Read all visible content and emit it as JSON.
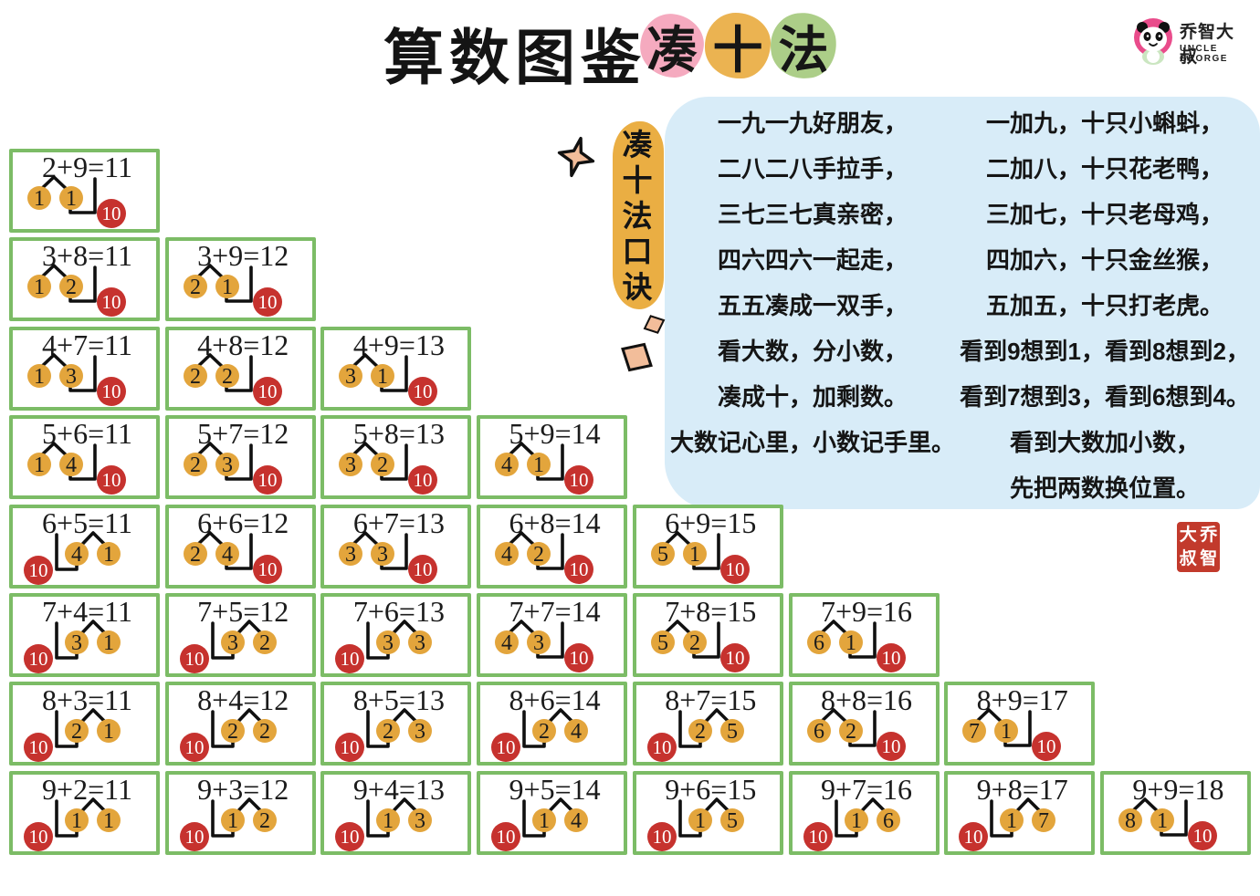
{
  "title": {
    "main": "算数图鉴",
    "method_chars": [
      {
        "char": "凑",
        "bg": "#F5AABF"
      },
      {
        "char": "十",
        "bg": "#EBB351"
      },
      {
        "char": "法",
        "bg": "#ACCE88"
      }
    ]
  },
  "logo": {
    "name_cn": "乔智大叔",
    "name_en": "UNCLE GEORGE",
    "pink": "#E94C8B"
  },
  "vertical_slogan": {
    "text": "凑十法口诀",
    "chars": [
      "凑",
      "十",
      "法",
      "口",
      "诀"
    ]
  },
  "rhyme_left": [
    "一九一九好朋友，",
    "二八二八手拉手，",
    "三七三七真亲密，",
    "四六四六一起走，",
    "五五凑成一双手，",
    "看大数，分小数，",
    "凑成十，加剩数。",
    "大数记心里，小数记手里。"
  ],
  "rhyme_right": [
    "一加九，十只小蝌蚪，",
    "二加八，十只花老鸭，",
    "三加七，十只老母鸡，",
    "四加六，十只金丝猴，",
    "五加五，十只打老虎。",
    "看到9想到1，看到8想到2，",
    "看到7想到3，看到6想到4。",
    "看到大数加小数，",
    "先把两数换位置。"
  ],
  "seal_chars": [
    "大",
    "乔",
    "叔",
    "智"
  ],
  "ten_label": "10",
  "colors": {
    "grid_border": "#7CBC66",
    "orange_circle": "#E3A53C",
    "red_circle": "#C6322E",
    "panel_blue": "#D8ECF8",
    "slogan_orange": "#EAAE43",
    "seal_red": "#C23A2C"
  },
  "grid_rows": [
    [
      {
        "eq": "2+9=11",
        "split": [
          "1",
          "1"
        ],
        "ten_side": "right"
      }
    ],
    [
      {
        "eq": "3+8=11",
        "split": [
          "1",
          "2"
        ],
        "ten_side": "right"
      },
      {
        "eq": "3+9=12",
        "split": [
          "2",
          "1"
        ],
        "ten_side": "right"
      }
    ],
    [
      {
        "eq": "4+7=11",
        "split": [
          "1",
          "3"
        ],
        "ten_side": "right"
      },
      {
        "eq": "4+8=12",
        "split": [
          "2",
          "2"
        ],
        "ten_side": "right"
      },
      {
        "eq": "4+9=13",
        "split": [
          "3",
          "1"
        ],
        "ten_side": "right"
      }
    ],
    [
      {
        "eq": "5+6=11",
        "split": [
          "1",
          "4"
        ],
        "ten_side": "right"
      },
      {
        "eq": "5+7=12",
        "split": [
          "2",
          "3"
        ],
        "ten_side": "right"
      },
      {
        "eq": "5+8=13",
        "split": [
          "3",
          "2"
        ],
        "ten_side": "right"
      },
      {
        "eq": "5+9=14",
        "split": [
          "4",
          "1"
        ],
        "ten_side": "right"
      }
    ],
    [
      {
        "eq": "6+5=11",
        "split": [
          "4",
          "1"
        ],
        "ten_side": "left"
      },
      {
        "eq": "6+6=12",
        "split": [
          "2",
          "4"
        ],
        "ten_side": "right"
      },
      {
        "eq": "6+7=13",
        "split": [
          "3",
          "3"
        ],
        "ten_side": "right"
      },
      {
        "eq": "6+8=14",
        "split": [
          "4",
          "2"
        ],
        "ten_side": "right"
      },
      {
        "eq": "6+9=15",
        "split": [
          "5",
          "1"
        ],
        "ten_side": "right"
      }
    ],
    [
      {
        "eq": "7+4=11",
        "split": [
          "3",
          "1"
        ],
        "ten_side": "left"
      },
      {
        "eq": "7+5=12",
        "split": [
          "3",
          "2"
        ],
        "ten_side": "left"
      },
      {
        "eq": "7+6=13",
        "split": [
          "3",
          "3"
        ],
        "ten_side": "left"
      },
      {
        "eq": "7+7=14",
        "split": [
          "4",
          "3"
        ],
        "ten_side": "right"
      },
      {
        "eq": "7+8=15",
        "split": [
          "5",
          "2"
        ],
        "ten_side": "right"
      },
      {
        "eq": "7+9=16",
        "split": [
          "6",
          "1"
        ],
        "ten_side": "right"
      }
    ],
    [
      {
        "eq": "8+3=11",
        "split": [
          "2",
          "1"
        ],
        "ten_side": "left"
      },
      {
        "eq": "8+4=12",
        "split": [
          "2",
          "2"
        ],
        "ten_side": "left"
      },
      {
        "eq": "8+5=13",
        "split": [
          "2",
          "3"
        ],
        "ten_side": "left"
      },
      {
        "eq": "8+6=14",
        "split": [
          "2",
          "4"
        ],
        "ten_side": "left"
      },
      {
        "eq": "8+7=15",
        "split": [
          "2",
          "5"
        ],
        "ten_side": "left"
      },
      {
        "eq": "8+8=16",
        "split": [
          "6",
          "2"
        ],
        "ten_side": "right"
      },
      {
        "eq": "8+9=17",
        "split": [
          "7",
          "1"
        ],
        "ten_side": "right"
      }
    ],
    [
      {
        "eq": "9+2=11",
        "split": [
          "1",
          "1"
        ],
        "ten_side": "left"
      },
      {
        "eq": "9+3=12",
        "split": [
          "1",
          "2"
        ],
        "ten_side": "left"
      },
      {
        "eq": "9+4=13",
        "split": [
          "1",
          "3"
        ],
        "ten_side": "left"
      },
      {
        "eq": "9+5=14",
        "split": [
          "1",
          "4"
        ],
        "ten_side": "left"
      },
      {
        "eq": "9+6=15",
        "split": [
          "1",
          "5"
        ],
        "ten_side": "left"
      },
      {
        "eq": "9+7=16",
        "split": [
          "1",
          "6"
        ],
        "ten_side": "left"
      },
      {
        "eq": "9+8=17",
        "split": [
          "1",
          "7"
        ],
        "ten_side": "left"
      },
      {
        "eq": "9+9=18",
        "split": [
          "8",
          "1"
        ],
        "ten_side": "right"
      }
    ]
  ]
}
